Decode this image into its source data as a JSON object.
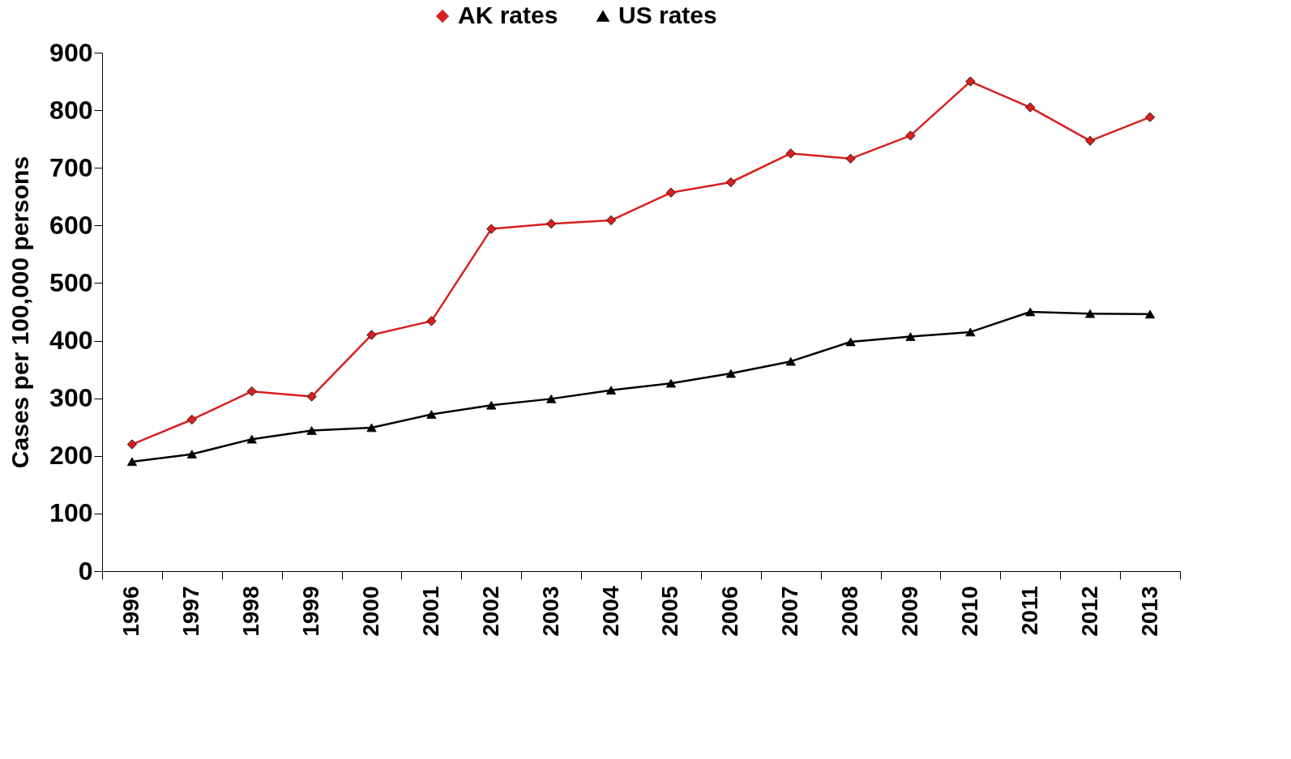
{
  "chart_data": {
    "type": "line",
    "ylabel": "Cases per 100,000 persons",
    "categories": [
      "1996",
      "1997",
      "1998",
      "1999",
      "2000",
      "2001",
      "2002",
      "2003",
      "2004",
      "2005",
      "2006",
      "2007",
      "2008",
      "2009",
      "2010",
      "2011",
      "2012",
      "2013"
    ],
    "series": [
      {
        "name": "AK rates",
        "color": "#d7201f",
        "marker": "diamond",
        "values": [
          220,
          263,
          312,
          303,
          410,
          434,
          594,
          603,
          609,
          657,
          675,
          725,
          716,
          756,
          850,
          805,
          747,
          788
        ]
      },
      {
        "name": "US rates",
        "color": "#000000",
        "marker": "triangle",
        "values": [
          190,
          203,
          229,
          244,
          249,
          272,
          288,
          299,
          314,
          326,
          343,
          364,
          398,
          407,
          415,
          450,
          447,
          446
        ]
      }
    ],
    "ylim": [
      0,
      900
    ],
    "yticks": [
      0,
      100,
      200,
      300,
      400,
      500,
      600,
      700,
      800,
      900
    ],
    "grid": false,
    "legend": "top",
    "line_style": "solid"
  }
}
